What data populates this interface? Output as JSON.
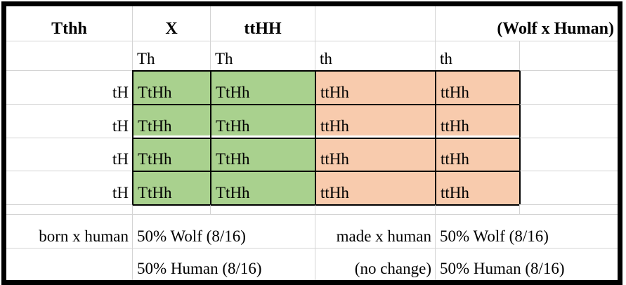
{
  "sheet": {
    "colors": {
      "green": "#a9d18e",
      "orange": "#f8cbad",
      "gridline": "#d4d4d4",
      "frame": "#000000"
    },
    "header": {
      "parent1": "Tthh",
      "cross": "X",
      "parent2": "ttHH",
      "title": "(Wolf x Human)"
    },
    "gametes_cols": [
      "Th",
      "Th",
      "th",
      "th"
    ],
    "gametes_rows": [
      "tH",
      "tH",
      "tH",
      "tH"
    ],
    "punnett": [
      [
        "TtHh",
        "TtHh",
        "ttHh",
        "ttHh"
      ],
      [
        "TtHh",
        "TtHh",
        "ttHh",
        "ttHh"
      ],
      [
        "TtHh",
        "TtHh",
        "ttHh",
        "ttHh"
      ],
      [
        "TtHh",
        "TtHh",
        "ttHh",
        "ttHh"
      ]
    ],
    "results_left": {
      "label": "born x human",
      "wolf": "50% Wolf (8/16)",
      "human": "50% Human (8/16)"
    },
    "results_right": {
      "label": "made x human",
      "note": "(no change)",
      "wolf": "50% Wolf (8/16)",
      "human": "50% Human (8/16)"
    }
  }
}
